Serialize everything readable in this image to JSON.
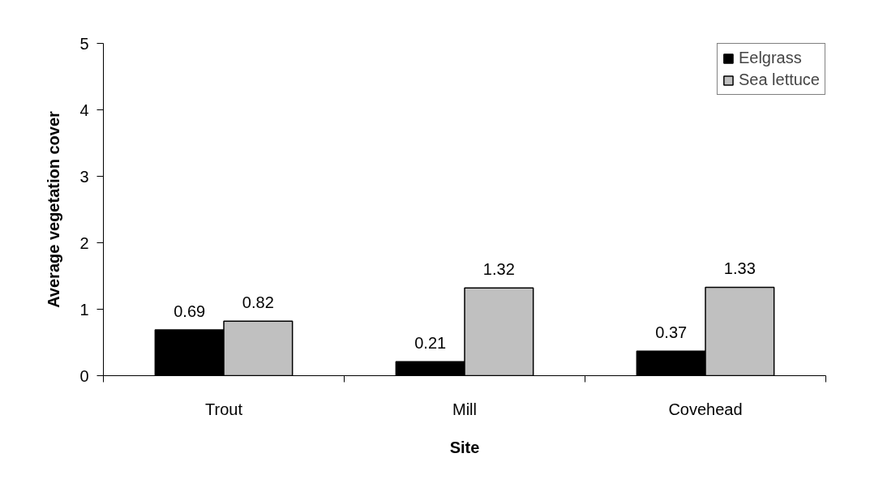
{
  "chart_data": {
    "type": "bar",
    "xlabel": "Site",
    "ylabel": "Average vegetation cover",
    "categories": [
      "Trout",
      "Mill",
      "Covehead"
    ],
    "series": [
      {
        "name": "Eelgrass",
        "color": "#000000",
        "values": [
          0.69,
          0.21,
          0.37
        ]
      },
      {
        "name": "Sea lettuce",
        "color": "#c0c0c0",
        "values": [
          0.82,
          1.32,
          1.33
        ]
      }
    ],
    "ylim": [
      0,
      5
    ],
    "yticks": [
      0,
      1,
      2,
      3,
      4,
      5
    ],
    "data_labels": true,
    "legend": "top right"
  }
}
